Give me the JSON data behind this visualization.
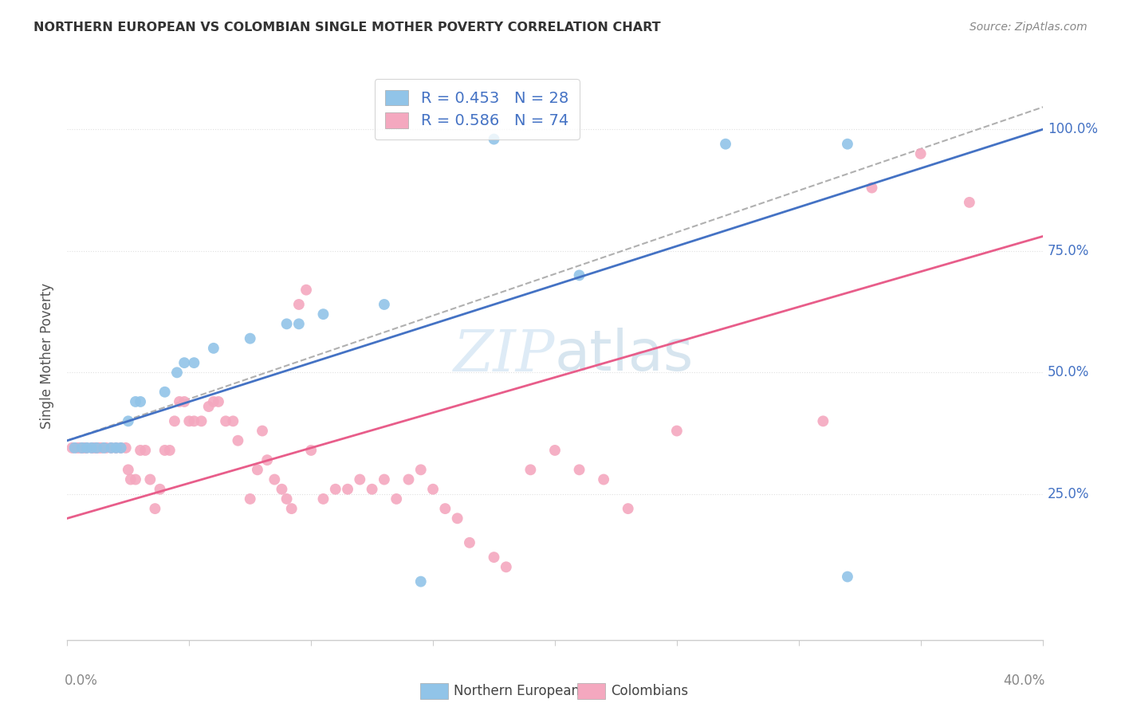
{
  "title": "NORTHERN EUROPEAN VS COLOMBIAN SINGLE MOTHER POVERTY CORRELATION CHART",
  "source": "Source: ZipAtlas.com",
  "ylabel": "Single Mother Poverty",
  "ytick_labels": [
    "25.0%",
    "50.0%",
    "75.0%",
    "100.0%"
  ],
  "ytick_values": [
    0.25,
    0.5,
    0.75,
    1.0
  ],
  "xlim": [
    0.0,
    0.4
  ],
  "ylim": [
    -0.05,
    1.12
  ],
  "watermark_zip": "ZIP",
  "watermark_atlas": "atlas",
  "legend_label_blue": "Northern Europeans",
  "legend_label_pink": "Colombians",
  "R_blue": "0.453",
  "N_blue": "28",
  "R_pink": "0.586",
  "N_pink": "74",
  "blue_color": "#91c4e8",
  "pink_color": "#f4a8bf",
  "blue_line_color": "#4472c4",
  "pink_line_color": "#e85d8a",
  "dashed_line_color": "#b0b0b0",
  "title_color": "#333333",
  "source_color": "#888888",
  "tick_color": "#888888",
  "ylabel_color": "#555555",
  "grid_color": "#e0e0e0",
  "right_tick_color": "#4472c4",
  "blue_scatter": [
    [
      0.003,
      0.345
    ],
    [
      0.006,
      0.345
    ],
    [
      0.008,
      0.345
    ],
    [
      0.01,
      0.345
    ],
    [
      0.012,
      0.345
    ],
    [
      0.015,
      0.345
    ],
    [
      0.018,
      0.345
    ],
    [
      0.02,
      0.345
    ],
    [
      0.022,
      0.345
    ],
    [
      0.025,
      0.4
    ],
    [
      0.028,
      0.44
    ],
    [
      0.03,
      0.44
    ],
    [
      0.04,
      0.46
    ],
    [
      0.045,
      0.5
    ],
    [
      0.048,
      0.52
    ],
    [
      0.052,
      0.52
    ],
    [
      0.06,
      0.55
    ],
    [
      0.075,
      0.57
    ],
    [
      0.09,
      0.6
    ],
    [
      0.095,
      0.6
    ],
    [
      0.105,
      0.62
    ],
    [
      0.13,
      0.64
    ],
    [
      0.145,
      0.07
    ],
    [
      0.175,
      0.98
    ],
    [
      0.21,
      0.7
    ],
    [
      0.32,
      0.08
    ],
    [
      0.27,
      0.97
    ],
    [
      0.32,
      0.97
    ]
  ],
  "pink_scatter": [
    [
      0.002,
      0.345
    ],
    [
      0.004,
      0.345
    ],
    [
      0.005,
      0.345
    ],
    [
      0.006,
      0.345
    ],
    [
      0.007,
      0.345
    ],
    [
      0.008,
      0.345
    ],
    [
      0.01,
      0.345
    ],
    [
      0.011,
      0.345
    ],
    [
      0.012,
      0.345
    ],
    [
      0.013,
      0.345
    ],
    [
      0.014,
      0.345
    ],
    [
      0.016,
      0.345
    ],
    [
      0.018,
      0.345
    ],
    [
      0.02,
      0.345
    ],
    [
      0.022,
      0.345
    ],
    [
      0.024,
      0.345
    ],
    [
      0.025,
      0.3
    ],
    [
      0.026,
      0.28
    ],
    [
      0.028,
      0.28
    ],
    [
      0.03,
      0.34
    ],
    [
      0.032,
      0.34
    ],
    [
      0.034,
      0.28
    ],
    [
      0.036,
      0.22
    ],
    [
      0.038,
      0.26
    ],
    [
      0.04,
      0.34
    ],
    [
      0.042,
      0.34
    ],
    [
      0.044,
      0.4
    ],
    [
      0.046,
      0.44
    ],
    [
      0.048,
      0.44
    ],
    [
      0.05,
      0.4
    ],
    [
      0.052,
      0.4
    ],
    [
      0.055,
      0.4
    ],
    [
      0.058,
      0.43
    ],
    [
      0.06,
      0.44
    ],
    [
      0.062,
      0.44
    ],
    [
      0.065,
      0.4
    ],
    [
      0.068,
      0.4
    ],
    [
      0.07,
      0.36
    ],
    [
      0.075,
      0.24
    ],
    [
      0.078,
      0.3
    ],
    [
      0.08,
      0.38
    ],
    [
      0.082,
      0.32
    ],
    [
      0.085,
      0.28
    ],
    [
      0.088,
      0.26
    ],
    [
      0.09,
      0.24
    ],
    [
      0.092,
      0.22
    ],
    [
      0.095,
      0.64
    ],
    [
      0.098,
      0.67
    ],
    [
      0.1,
      0.34
    ],
    [
      0.105,
      0.24
    ],
    [
      0.11,
      0.26
    ],
    [
      0.115,
      0.26
    ],
    [
      0.12,
      0.28
    ],
    [
      0.125,
      0.26
    ],
    [
      0.13,
      0.28
    ],
    [
      0.135,
      0.24
    ],
    [
      0.14,
      0.28
    ],
    [
      0.145,
      0.3
    ],
    [
      0.15,
      0.26
    ],
    [
      0.155,
      0.22
    ],
    [
      0.16,
      0.2
    ],
    [
      0.165,
      0.15
    ],
    [
      0.175,
      0.12
    ],
    [
      0.18,
      0.1
    ],
    [
      0.19,
      0.3
    ],
    [
      0.2,
      0.34
    ],
    [
      0.21,
      0.3
    ],
    [
      0.22,
      0.28
    ],
    [
      0.23,
      0.22
    ],
    [
      0.25,
      0.38
    ],
    [
      0.31,
      0.4
    ],
    [
      0.33,
      0.88
    ],
    [
      0.35,
      0.95
    ],
    [
      0.37,
      0.85
    ]
  ],
  "blue_trendline_x": [
    0.0,
    0.4
  ],
  "blue_trendline_y": [
    0.36,
    1.0
  ],
  "pink_trendline_x": [
    0.0,
    0.4
  ],
  "pink_trendline_y": [
    0.2,
    0.78
  ],
  "dashed_line_x": [
    0.0,
    0.42
  ],
  "dashed_line_y": [
    0.36,
    1.08
  ]
}
